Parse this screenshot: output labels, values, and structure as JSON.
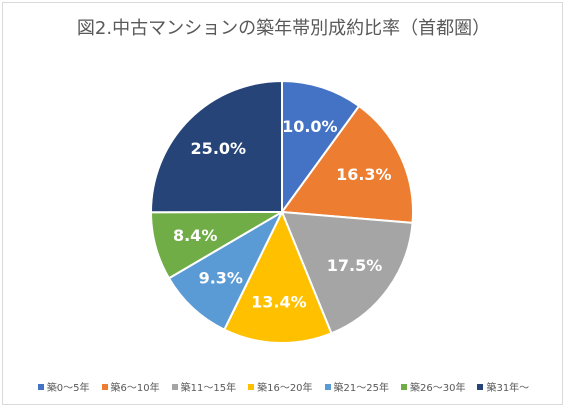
{
  "chart_data": {
    "type": "pie",
    "title": "図2.中古マンションの築年帯別成約比率（首都圏）",
    "legend_position": "bottom",
    "slices": [
      {
        "label": "築0～5年",
        "value": 10.0,
        "display": "10.0%",
        "color": "#4472c4"
      },
      {
        "label": "築6～10年",
        "value": 16.3,
        "display": "16.3%",
        "color": "#ed7d31"
      },
      {
        "label": "築11～15年",
        "value": 17.5,
        "display": "17.5%",
        "color": "#a5a5a5"
      },
      {
        "label": "築16～20年",
        "value": 13.4,
        "display": "13.4%",
        "color": "#ffc000"
      },
      {
        "label": "築21～25年",
        "value": 9.3,
        "display": "9.3%",
        "color": "#5b9bd5"
      },
      {
        "label": "築26～30年",
        "value": 8.4,
        "display": "8.4%",
        "color": "#70ad47"
      },
      {
        "label": "築31年～",
        "value": 25.0,
        "display": "25.0%",
        "color": "#264478"
      }
    ]
  }
}
